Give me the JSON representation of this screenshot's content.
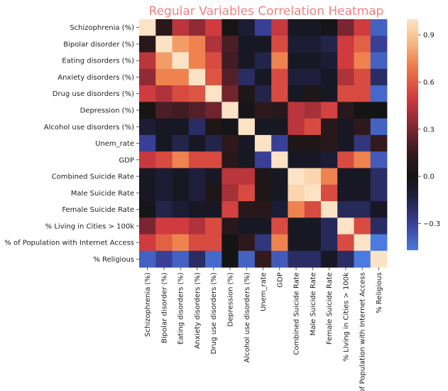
{
  "chart_data": {
    "type": "heatmap",
    "title": "Regular Variables Correlation Heatmap",
    "title_color": "#f08080",
    "labels": [
      "Schizophrenia (%)",
      "Bipolar disorder (%)",
      "Eating disorders (%)",
      "Anxiety disorders (%)",
      "Drug use disorders (%)",
      "Depression (%)",
      "Alcohol use disorders (%)",
      "Unem_rate",
      "GDP",
      "Combined Suicide Rate",
      "Male Suicide Rate",
      "Female Suicide Rate",
      "% Living in Cities > 100k",
      "% of Population with Internet Access",
      "% Religious"
    ],
    "matrix": [
      [
        1.0,
        0.1,
        0.45,
        0.35,
        0.5,
        0.02,
        -0.1,
        -0.3,
        0.48,
        -0.05,
        -0.05,
        -0.02,
        0.3,
        0.5,
        -0.4
      ],
      [
        0.1,
        1.0,
        0.78,
        0.72,
        0.42,
        0.2,
        -0.05,
        -0.05,
        0.55,
        -0.1,
        -0.1,
        -0.15,
        0.5,
        0.62,
        -0.3
      ],
      [
        0.45,
        0.78,
        1.0,
        0.72,
        0.55,
        0.18,
        -0.05,
        -0.15,
        0.72,
        -0.05,
        -0.05,
        -0.1,
        0.5,
        0.72,
        -0.4
      ],
      [
        0.35,
        0.72,
        0.72,
        1.0,
        0.58,
        0.22,
        -0.2,
        -0.05,
        0.55,
        -0.12,
        -0.12,
        -0.05,
        0.42,
        0.55,
        -0.2
      ],
      [
        0.5,
        0.42,
        0.55,
        0.58,
        1.0,
        0.28,
        0.05,
        -0.15,
        0.55,
        -0.05,
        0.05,
        -0.05,
        0.55,
        0.55,
        -0.42
      ],
      [
        0.02,
        0.2,
        0.18,
        0.22,
        0.28,
        1.0,
        -0.02,
        0.12,
        0.1,
        0.45,
        0.4,
        0.52,
        0.1,
        0.0,
        0.0
      ],
      [
        -0.1,
        -0.05,
        -0.05,
        -0.2,
        0.05,
        -0.02,
        1.0,
        -0.05,
        -0.05,
        0.45,
        0.55,
        0.1,
        -0.05,
        0.12,
        -0.4
      ],
      [
        -0.3,
        -0.05,
        -0.15,
        -0.05,
        -0.15,
        0.12,
        -0.05,
        1.0,
        -0.3,
        0.05,
        0.05,
        0.1,
        -0.05,
        -0.25,
        0.15
      ],
      [
        0.48,
        0.55,
        0.72,
        0.55,
        0.55,
        0.1,
        -0.05,
        -0.3,
        1.0,
        -0.05,
        -0.05,
        -0.1,
        0.55,
        0.72,
        -0.38
      ],
      [
        -0.05,
        -0.1,
        -0.05,
        -0.12,
        -0.05,
        0.45,
        0.45,
        0.05,
        -0.05,
        1.0,
        0.95,
        0.72,
        -0.05,
        -0.05,
        -0.2
      ],
      [
        -0.05,
        -0.1,
        -0.05,
        -0.12,
        0.05,
        0.4,
        0.55,
        0.05,
        -0.05,
        0.95,
        1.0,
        0.55,
        -0.05,
        -0.05,
        -0.2
      ],
      [
        -0.02,
        -0.15,
        -0.1,
        -0.05,
        -0.05,
        0.52,
        0.1,
        0.1,
        -0.1,
        0.72,
        0.55,
        1.0,
        -0.18,
        -0.18,
        -0.05
      ],
      [
        0.3,
        0.5,
        0.5,
        0.42,
        0.55,
        0.1,
        -0.05,
        -0.05,
        0.55,
        -0.05,
        -0.05,
        -0.18,
        1.0,
        0.55,
        -0.2
      ],
      [
        0.5,
        0.62,
        0.72,
        0.55,
        0.55,
        0.0,
        0.12,
        -0.25,
        0.72,
        -0.05,
        -0.05,
        -0.18,
        0.55,
        1.0,
        -0.5
      ],
      [
        -0.4,
        -0.3,
        -0.4,
        -0.2,
        -0.42,
        0.0,
        -0.4,
        0.15,
        -0.38,
        -0.2,
        -0.2,
        -0.05,
        -0.2,
        -0.5,
        1.0
      ]
    ],
    "colorbar": {
      "vmin": -0.47,
      "vmax": 1.0,
      "ticks": [
        0.9,
        0.6,
        0.3,
        0.0,
        -0.3
      ],
      "tick_labels": [
        "0.9",
        "0.6",
        "0.3",
        "0.0",
        "−0.3"
      ]
    },
    "colormap_stops": [
      {
        "v": -0.47,
        "color": "#4a7be0"
      },
      {
        "v": -0.3,
        "color": "#3a3f96"
      },
      {
        "v": -0.12,
        "color": "#1e1e3a"
      },
      {
        "v": 0.0,
        "color": "#141414"
      },
      {
        "v": 0.15,
        "color": "#331a1e"
      },
      {
        "v": 0.3,
        "color": "#7a2632"
      },
      {
        "v": 0.5,
        "color": "#d03b3f"
      },
      {
        "v": 0.7,
        "color": "#ee7b48"
      },
      {
        "v": 0.85,
        "color": "#f7b982"
      },
      {
        "v": 1.0,
        "color": "#fde3c6"
      }
    ]
  }
}
